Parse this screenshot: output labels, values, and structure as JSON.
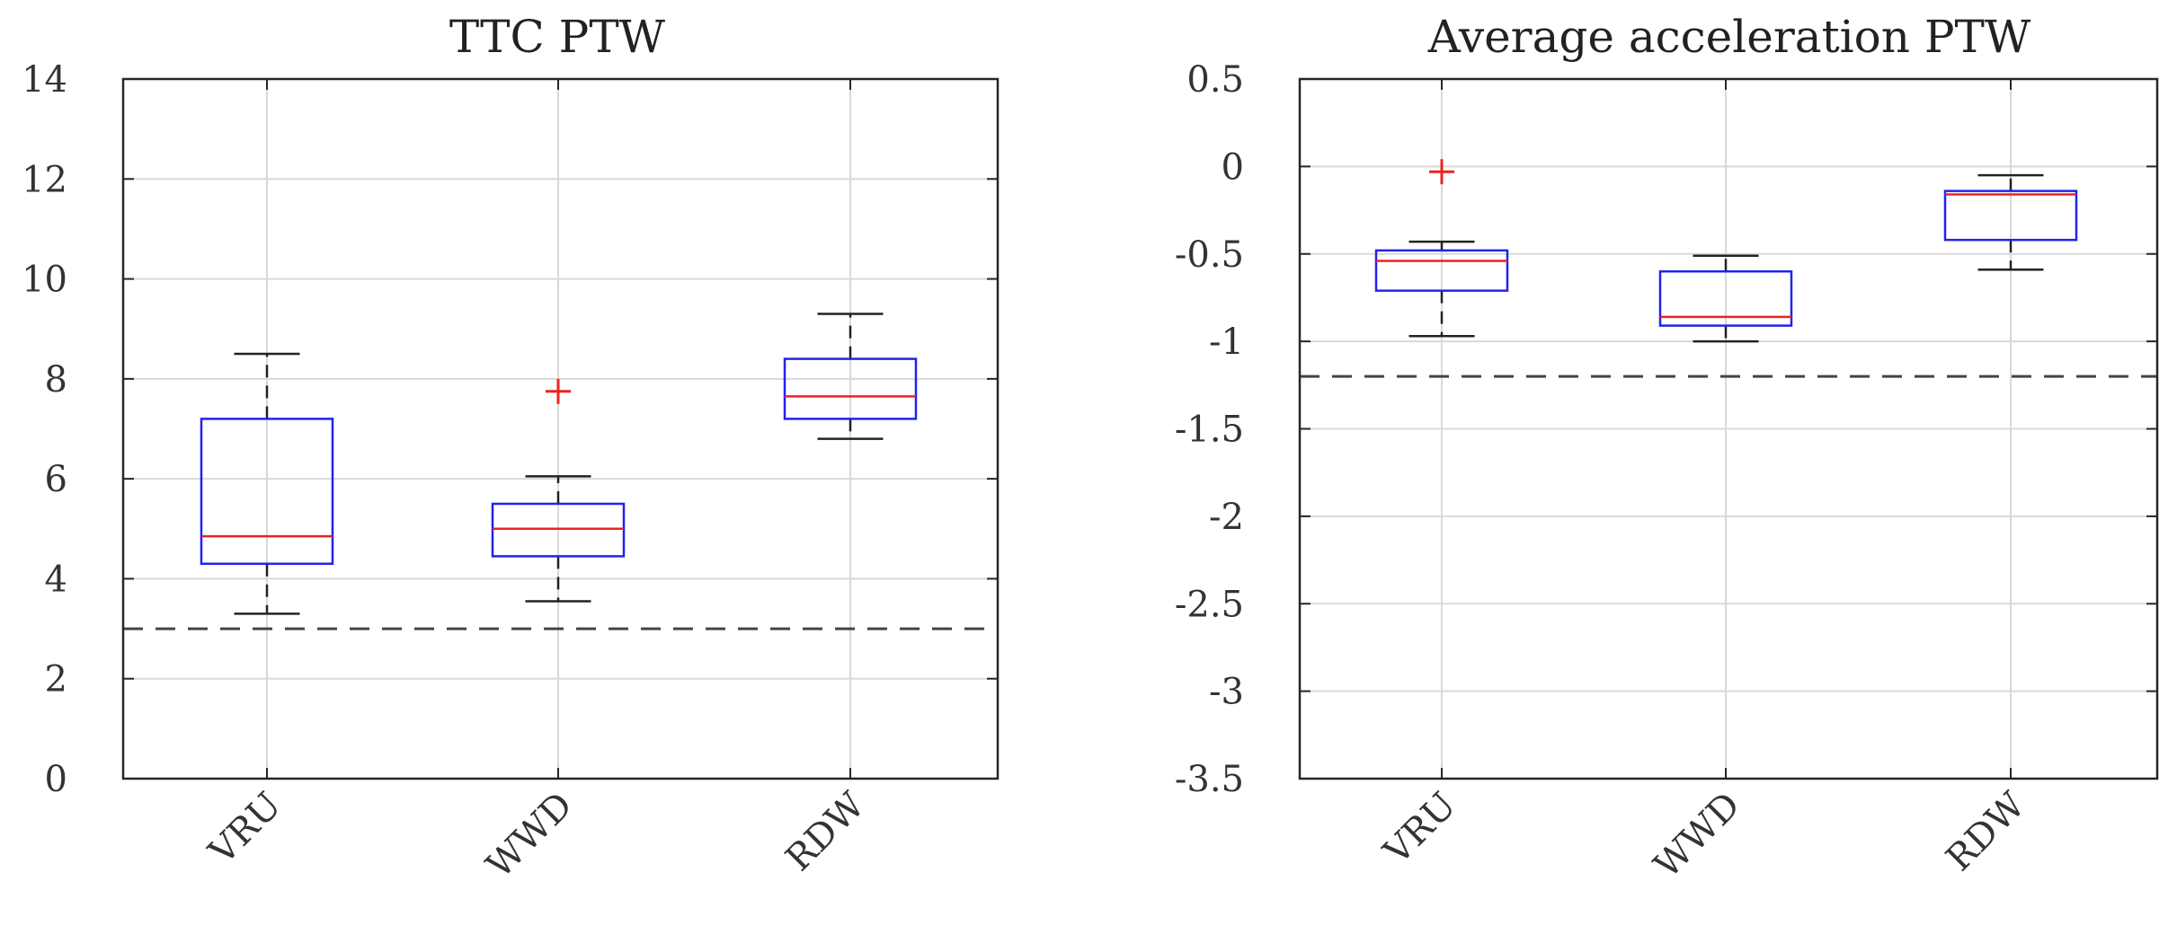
{
  "chart_data": [
    {
      "type": "box",
      "title": "TTC PTW",
      "categories": [
        "VRU",
        "WWD",
        "RDW"
      ],
      "ylim": [
        0,
        14
      ],
      "yticks": [
        0,
        2,
        4,
        6,
        8,
        10,
        12,
        14
      ],
      "ytick_labels": [
        "0",
        "2",
        "4",
        "6",
        "8",
        "10",
        "12",
        "14"
      ],
      "grid": true,
      "reference_line": 3.0,
      "boxes": [
        {
          "category": "VRU",
          "whisker_low": 3.3,
          "q1": 4.3,
          "median": 4.85,
          "q3": 7.2,
          "whisker_high": 8.5,
          "outliers": []
        },
        {
          "category": "WWD",
          "whisker_low": 3.55,
          "q1": 4.45,
          "median": 5.0,
          "q3": 5.5,
          "whisker_high": 6.05,
          "outliers": [
            7.75
          ]
        },
        {
          "category": "RDW",
          "whisker_low": 6.8,
          "q1": 7.2,
          "median": 7.65,
          "q3": 8.4,
          "whisker_high": 9.3,
          "outliers": []
        }
      ]
    },
    {
      "type": "box",
      "title": "Average acceleration PTW",
      "categories": [
        "VRU",
        "WWD",
        "RDW"
      ],
      "ylim": [
        -3.5,
        0.5
      ],
      "yticks": [
        -3.5,
        -3,
        -2.5,
        -2,
        -1.5,
        -1,
        -0.5,
        0,
        0.5
      ],
      "ytick_labels": [
        "-3.5",
        "-3",
        "-2.5",
        "-2",
        "-1.5",
        "-1",
        "-0.5",
        "0",
        "0.5"
      ],
      "grid": true,
      "reference_line": -1.2,
      "boxes": [
        {
          "category": "VRU",
          "whisker_low": -0.97,
          "q1": -0.71,
          "median": -0.54,
          "q3": -0.48,
          "whisker_high": -0.43,
          "outliers": [
            -0.03
          ]
        },
        {
          "category": "WWD",
          "whisker_low": -1.0,
          "q1": -0.91,
          "median": -0.86,
          "q3": -0.6,
          "whisker_high": -0.51,
          "outliers": []
        },
        {
          "category": "RDW",
          "whisker_low": -0.59,
          "q1": -0.42,
          "median": -0.16,
          "q3": -0.14,
          "whisker_high": -0.05,
          "outliers": []
        }
      ]
    }
  ]
}
